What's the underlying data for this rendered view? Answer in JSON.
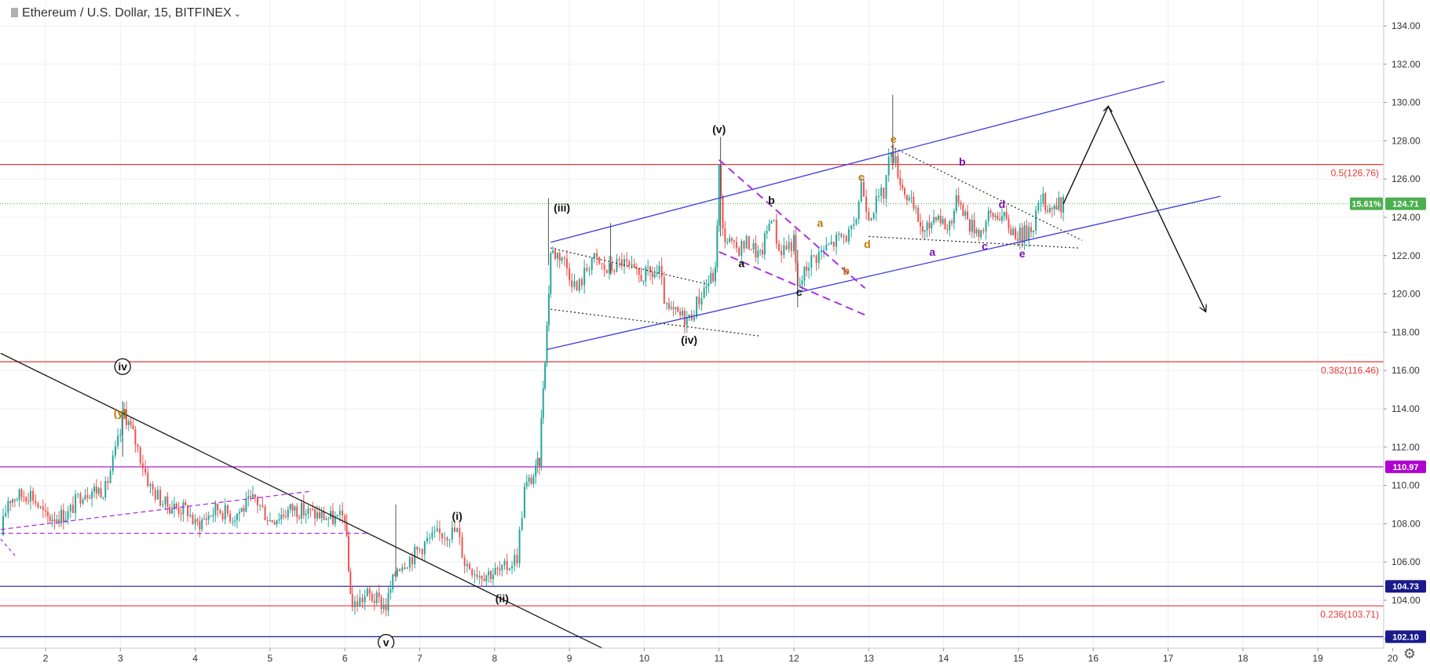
{
  "header": {
    "title": "Ethereum / U.S. Dollar, 15, BITFINEX",
    "caret": "⌄"
  },
  "colors": {
    "bull": "#26a69a",
    "bear": "#ef5350",
    "channel": "#3b3bdd",
    "fib": "#e53935",
    "magenta": "#b000d0",
    "navy": "#1a1a8c",
    "current": "#4caf50",
    "trend": "#1a1a1a",
    "dashed": "#aa33dd",
    "orange": "#c27700",
    "purple": "#7a10b0"
  },
  "chart_data": {
    "type": "candlestick",
    "title": "Ethereum / U.S. Dollar, 15, BITFINEX",
    "xlim": [
      1.4,
      20.0
    ],
    "ylim": [
      101.0,
      135.0
    ],
    "x_ticks": [
      "2",
      "3",
      "4",
      "5",
      "6",
      "7",
      "8",
      "9",
      "10",
      "11",
      "12",
      "13",
      "14",
      "15",
      "16",
      "17",
      "18",
      "19",
      "20"
    ],
    "y_ticks": [
      "102.00",
      "104.00",
      "106.00",
      "108.00",
      "110.00",
      "112.00",
      "114.00",
      "116.00",
      "118.00",
      "120.00",
      "122.00",
      "124.00",
      "126.00",
      "128.00",
      "130.00",
      "132.00",
      "134.00"
    ],
    "price_path": [
      [
        1.4,
        107.4
      ],
      [
        1.5,
        109.3
      ],
      [
        1.8,
        109.6
      ],
      [
        2.0,
        108.3
      ],
      [
        2.3,
        108.5
      ],
      [
        2.5,
        109.7
      ],
      [
        2.8,
        109.8
      ],
      [
        3.0,
        112.7
      ],
      [
        3.05,
        113.9
      ],
      [
        3.2,
        112.3
      ],
      [
        3.4,
        109.9
      ],
      [
        3.6,
        109.0
      ],
      [
        3.9,
        108.7
      ],
      [
        4.0,
        107.9
      ],
      [
        4.3,
        108.8
      ],
      [
        4.5,
        108.4
      ],
      [
        4.8,
        109.3
      ],
      [
        5.0,
        108.2
      ],
      [
        5.3,
        108.8
      ],
      [
        5.6,
        108.5
      ],
      [
        5.9,
        108.2
      ],
      [
        6.0,
        108.4
      ],
      [
        6.05,
        105.5
      ],
      [
        6.1,
        103.7
      ],
      [
        6.3,
        104.3
      ],
      [
        6.55,
        103.7
      ],
      [
        6.7,
        105.8
      ],
      [
        6.9,
        106.3
      ],
      [
        7.1,
        107.1
      ],
      [
        7.3,
        107.5
      ],
      [
        7.5,
        107.6
      ],
      [
        7.6,
        106.0
      ],
      [
        7.8,
        105.4
      ],
      [
        8.1,
        105.5
      ],
      [
        8.3,
        106.3
      ],
      [
        8.4,
        109.8
      ],
      [
        8.55,
        110.7
      ],
      [
        8.6,
        111.3
      ],
      [
        8.65,
        115.3
      ],
      [
        8.7,
        118.3
      ],
      [
        8.75,
        122.2
      ],
      [
        8.9,
        122.0
      ],
      [
        9.1,
        120.2
      ],
      [
        9.3,
        121.9
      ],
      [
        9.5,
        121.2
      ],
      [
        9.7,
        121.7
      ],
      [
        9.9,
        120.9
      ],
      [
        10.2,
        121.1
      ],
      [
        10.3,
        119.1
      ],
      [
        10.6,
        118.7
      ],
      [
        10.8,
        120.3
      ],
      [
        10.95,
        121.1
      ],
      [
        11.0,
        126.6
      ],
      [
        11.05,
        123.2
      ],
      [
        11.2,
        122.3
      ],
      [
        11.4,
        122.7
      ],
      [
        11.55,
        121.9
      ],
      [
        11.7,
        124.2
      ],
      [
        11.8,
        122.3
      ],
      [
        12.0,
        122.7
      ],
      [
        12.05,
        120.2
      ],
      [
        12.2,
        121.7
      ],
      [
        12.4,
        122.3
      ],
      [
        12.6,
        122.9
      ],
      [
        12.8,
        123.2
      ],
      [
        12.9,
        125.8
      ],
      [
        13.0,
        124.2
      ],
      [
        13.2,
        125.3
      ],
      [
        13.3,
        127.7
      ],
      [
        13.45,
        125.6
      ],
      [
        13.6,
        124.4
      ],
      [
        13.75,
        123.1
      ],
      [
        13.9,
        124.3
      ],
      [
        14.05,
        123.4
      ],
      [
        14.2,
        125.1
      ],
      [
        14.35,
        123.6
      ],
      [
        14.5,
        123.3
      ],
      [
        14.6,
        124.0
      ],
      [
        14.75,
        124.2
      ],
      [
        14.9,
        123.4
      ],
      [
        15.05,
        123.0
      ],
      [
        15.2,
        123.7
      ],
      [
        15.3,
        124.9
      ],
      [
        15.45,
        124.5
      ],
      [
        15.6,
        124.7
      ]
    ],
    "current_price": 124.71,
    "change_label": "15.61%",
    "price_labels": [
      {
        "value": 110.97,
        "text": "110.97",
        "color": "#b000d0"
      },
      {
        "value": 104.73,
        "text": "104.73",
        "color": "#1a1a8c"
      },
      {
        "value": 102.1,
        "text": "102.10",
        "color": "#1a1a8c"
      },
      {
        "value": 124.71,
        "text": "124.71",
        "color": "#4caf50"
      }
    ],
    "fib_levels": [
      {
        "value": 126.76,
        "text": "0.5(126.76)"
      },
      {
        "value": 116.46,
        "text": "0.382(116.46)"
      },
      {
        "value": 103.71,
        "text": "0.236(103.71)"
      }
    ],
    "hlines": [
      {
        "value": 110.97,
        "color": "#b000d0"
      },
      {
        "value": 104.73,
        "color": "#1a1a8c"
      },
      {
        "value": 102.1,
        "color": "#1a1a8c"
      }
    ],
    "lines": [
      {
        "pts": [
          [
            1.4,
            116.9
          ],
          [
            9.7,
            101.0
          ]
        ],
        "color": "#1a1a1a",
        "dash": ""
      },
      {
        "pts": [
          [
            8.7,
            117.1
          ],
          [
            17.7,
            125.1
          ]
        ],
        "color": "#3b3bdd",
        "dash": ""
      },
      {
        "pts": [
          [
            8.75,
            122.7
          ],
          [
            16.95,
            131.1
          ]
        ],
        "color": "#3b3bdd",
        "dash": ""
      },
      {
        "pts": [
          [
            8.75,
            122.4
          ],
          [
            10.85,
            120.5
          ]
        ],
        "color": "#333333",
        "dash": "2,3"
      },
      {
        "pts": [
          [
            8.75,
            119.2
          ],
          [
            11.55,
            117.8
          ]
        ],
        "color": "#333333",
        "dash": "2,3"
      },
      {
        "pts": [
          [
            13.3,
            127.7
          ],
          [
            15.85,
            122.8
          ]
        ],
        "color": "#333333",
        "dash": "2,3"
      },
      {
        "pts": [
          [
            13.0,
            123.0
          ],
          [
            15.8,
            122.4
          ]
        ],
        "color": "#333333",
        "dash": "2,3"
      },
      {
        "pts": [
          [
            1.4,
            107.7
          ],
          [
            5.55,
            109.7
          ]
        ],
        "color": "#aa33dd",
        "dash": "6,4"
      },
      {
        "pts": [
          [
            1.4,
            107.5
          ],
          [
            6.3,
            107.5
          ]
        ],
        "color": "#aa33dd",
        "dash": "6,4"
      },
      {
        "pts": [
          [
            1.4,
            107.2
          ],
          [
            1.6,
            106.3
          ]
        ],
        "color": "#aa33dd",
        "dash": "4,4"
      },
      {
        "pts": [
          [
            11.0,
            127.0
          ],
          [
            12.95,
            120.3
          ]
        ],
        "color": "#aa33dd",
        "dash": "10,6",
        "width": 2
      },
      {
        "pts": [
          [
            11.0,
            122.2
          ],
          [
            12.95,
            118.9
          ]
        ],
        "color": "#aa33dd",
        "dash": "10,6",
        "width": 2
      }
    ],
    "projection": [
      [
        15.6,
        124.7
      ],
      [
        16.2,
        129.8
      ],
      [
        17.5,
        119.1
      ]
    ],
    "annotations": [
      {
        "text": "iv",
        "x": 3.03,
        "y": 116.0,
        "color": "#111111",
        "circled": true
      },
      {
        "text": "v",
        "x": 6.55,
        "y": 101.6,
        "color": "#111111",
        "circled": true
      },
      {
        "text": "(y)",
        "x": 3.0,
        "y": 113.6,
        "color": "#c27700"
      },
      {
        "text": "(i)",
        "x": 7.5,
        "y": 108.2,
        "color": "#111111"
      },
      {
        "text": "(ii)",
        "x": 8.1,
        "y": 103.9,
        "color": "#111111"
      },
      {
        "text": "(iii)",
        "x": 8.9,
        "y": 124.3,
        "color": "#111111"
      },
      {
        "text": "(iv)",
        "x": 10.6,
        "y": 117.4,
        "color": "#111111"
      },
      {
        "text": "(v)",
        "x": 11.0,
        "y": 128.4,
        "color": "#111111"
      },
      {
        "text": "a",
        "x": 11.3,
        "y": 121.4,
        "color": "#111111"
      },
      {
        "text": "b",
        "x": 11.7,
        "y": 124.7,
        "color": "#111111"
      },
      {
        "text": "c",
        "x": 12.07,
        "y": 119.9,
        "color": "#111111"
      },
      {
        "text": "a",
        "x": 12.35,
        "y": 123.5,
        "color": "#c27700"
      },
      {
        "text": "b",
        "x": 12.7,
        "y": 121.0,
        "color": "#c27700"
      },
      {
        "text": "c",
        "x": 12.9,
        "y": 125.9,
        "color": "#c27700"
      },
      {
        "text": "d",
        "x": 12.98,
        "y": 122.4,
        "color": "#c27700"
      },
      {
        "text": "e",
        "x": 13.33,
        "y": 127.9,
        "color": "#c27700"
      },
      {
        "text": "a",
        "x": 13.85,
        "y": 122.0,
        "color": "#7a10b0"
      },
      {
        "text": "b",
        "x": 14.25,
        "y": 126.7,
        "color": "#7a10b0"
      },
      {
        "text": "c",
        "x": 14.55,
        "y": 122.3,
        "color": "#7a10b0"
      },
      {
        "text": "d",
        "x": 14.78,
        "y": 124.5,
        "color": "#7a10b0"
      },
      {
        "text": "e",
        "x": 15.05,
        "y": 121.9,
        "color": "#7a10b0"
      }
    ]
  }
}
